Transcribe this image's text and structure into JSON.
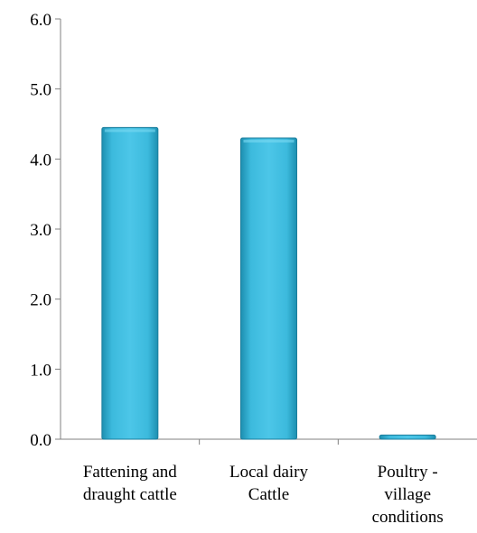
{
  "chart_data": {
    "type": "bar",
    "categories": [
      [
        "Fattening and",
        "draught cattle"
      ],
      [
        "Local dairy",
        "Cattle"
      ],
      [
        "Poultry -",
        "village",
        "conditions"
      ]
    ],
    "values": [
      4.45,
      4.3,
      0.06
    ],
    "yticks": [
      "0.0",
      "1.0",
      "2.0",
      "3.0",
      "4.0",
      "5.0",
      "6.0"
    ],
    "ylim": [
      0,
      6
    ],
    "grid": false,
    "legend": "none",
    "colors": {
      "bar_light": "#4cc6e8",
      "bar_mid": "#33b3d6",
      "bar_dark": "#1d8fb0",
      "bar_edge": "#1a7d9c",
      "axis": "#808080"
    }
  }
}
